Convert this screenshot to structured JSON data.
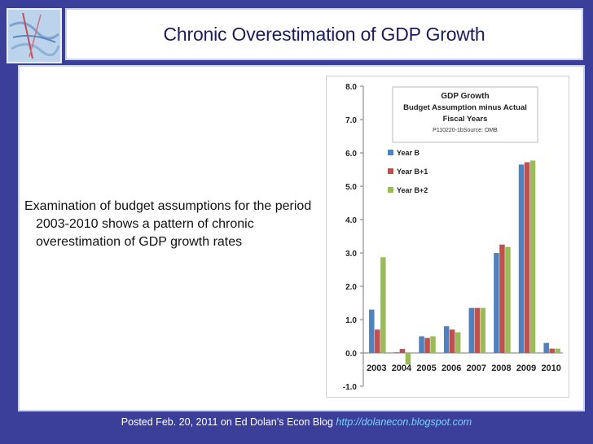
{
  "slide": {
    "title": "Chronic Overestimation of GDP Growth",
    "bullet": "Examination of budget assumptions for the period 2003-2010 shows a pattern of chronic overestimation of GDP growth rates",
    "footer_text": "Posted Feb. 20, 2011 on Ed Dolan’s Econ Blog",
    "footer_url": "http://dolanecon.blogspot.com",
    "colors": {
      "background": "#3b3f9a",
      "title_text": "#1c1c5a",
      "footer_url": "#7fd0ff"
    }
  },
  "chart_data": {
    "type": "bar",
    "title": "GDP Growth",
    "subtitle_lines": [
      "Budget Assumption minus Actual",
      "Fiscal Years"
    ],
    "source_note": "P110220-1bSource: OMB",
    "categories": [
      "2003",
      "2004",
      "2005",
      "2006",
      "2007",
      "2008",
      "2009",
      "2010"
    ],
    "series": [
      {
        "name": "Year B",
        "color": "#4f81bd",
        "values": [
          1.3,
          0.02,
          0.5,
          0.8,
          1.35,
          3.0,
          5.65,
          0.3
        ]
      },
      {
        "name": "Year B+1",
        "color": "#c0504d",
        "values": [
          0.7,
          0.12,
          0.45,
          0.7,
          1.35,
          3.25,
          5.72,
          0.13
        ]
      },
      {
        "name": "Year B+2",
        "color": "#9bbb59",
        "values": [
          2.87,
          -0.35,
          0.5,
          0.62,
          1.35,
          3.18,
          5.77,
          0.13
        ]
      }
    ],
    "yticks": [
      "-1.0",
      "0.0",
      "1.0",
      "2.0",
      "3.0",
      "4.0",
      "5.0",
      "6.0",
      "7.0",
      "8.0"
    ],
    "ylim": [
      -1,
      8
    ],
    "legend_position": "top-left",
    "grid": false
  }
}
